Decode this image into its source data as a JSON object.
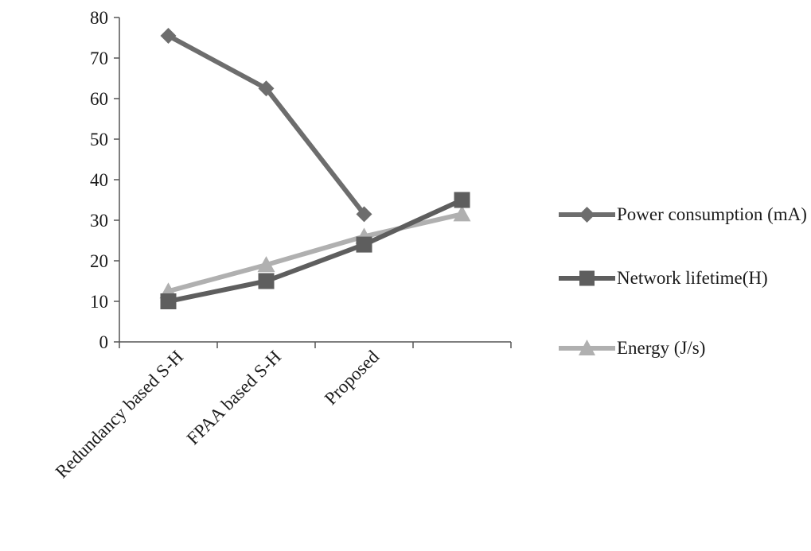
{
  "chart_data": {
    "type": "line",
    "categories": [
      "Redundancy based S-H",
      "FPAA based S-H",
      "Proposed",
      ""
    ],
    "ylim": [
      0,
      80
    ],
    "yticks": [
      0,
      10,
      20,
      30,
      40,
      50,
      60,
      70,
      80
    ],
    "grid": false,
    "legend_position": "right",
    "series": [
      {
        "name": "Power consumption (mA)",
        "values": [
          75.5,
          62.5,
          31.5,
          null
        ],
        "color": "#6d6d6d",
        "marker": "diamond"
      },
      {
        "name": "Network lifetime(H)",
        "values": [
          10,
          15,
          24,
          35
        ],
        "color": "#5e5e5e",
        "marker": "square"
      },
      {
        "name": "Energy (J/s)",
        "values": [
          12.5,
          19,
          26,
          31.5
        ],
        "color": "#b0b0b0",
        "marker": "triangle"
      }
    ]
  }
}
